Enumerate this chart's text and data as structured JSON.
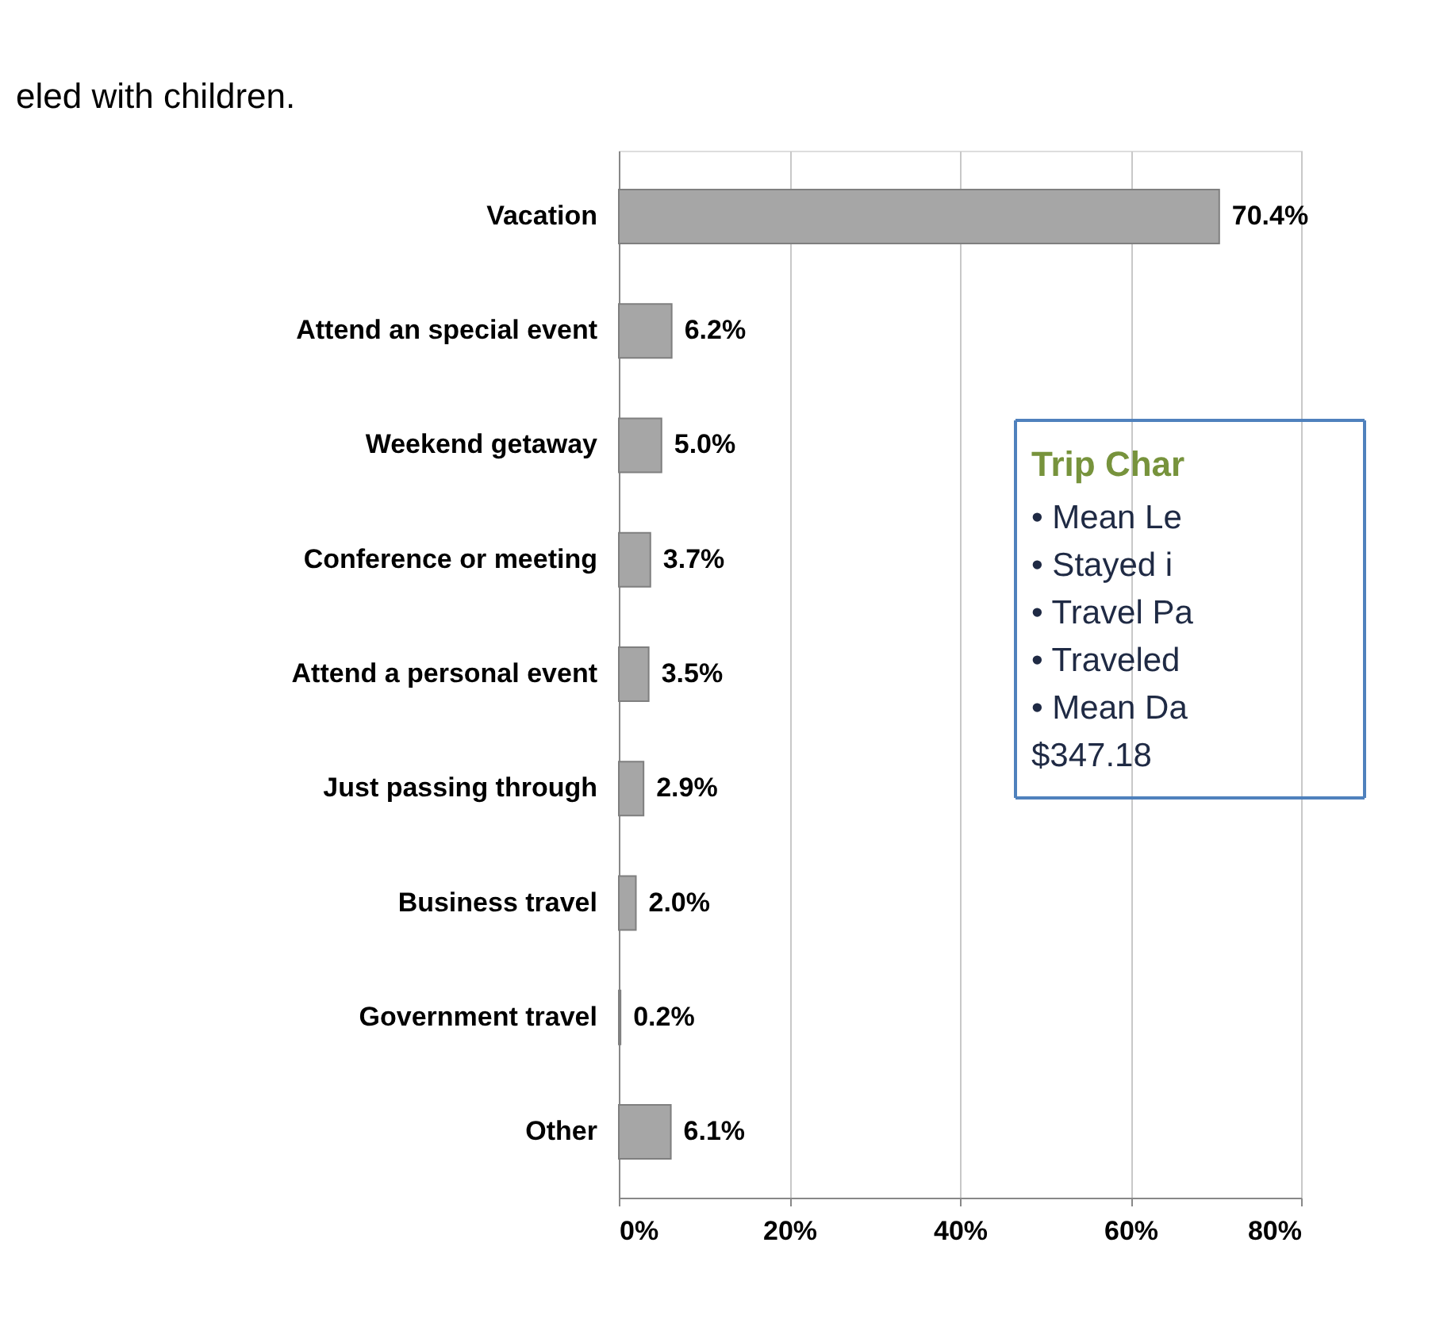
{
  "chart_data": {
    "type": "bar",
    "orientation": "horizontal",
    "categories": [
      "Vacation",
      "Attend an special event",
      "Weekend getaway",
      "Conference or meeting",
      "Attend a personal event",
      "Just passing through",
      "Business travel",
      "Government travel",
      "Other"
    ],
    "values": [
      70.4,
      6.2,
      5.0,
      3.7,
      3.5,
      2.9,
      2.0,
      0.2,
      6.1
    ],
    "value_labels": [
      "70.4%",
      "6.2%",
      "5.0%",
      "3.7%",
      "3.5%",
      "2.9%",
      "2.0%",
      "0.2%",
      "6.1%"
    ],
    "color": "#a6a6a6",
    "xlim": [
      0,
      80
    ],
    "xticks": [
      {
        "value": 0,
        "label": "0%"
      },
      {
        "value": 20,
        "label": "20%"
      },
      {
        "value": 40,
        "label": "40%"
      },
      {
        "value": 60,
        "label": "60%"
      },
      {
        "value": 80,
        "label": "80%"
      }
    ],
    "grid": "x",
    "annotations": [
      "eled with children.",
      "Trip Char",
      "•   Mean Le",
      "•   Stayed i",
      "•   Travel Pa",
      "•   Traveled",
      "•   Mean Da",
      "     $347.18"
    ]
  }
}
